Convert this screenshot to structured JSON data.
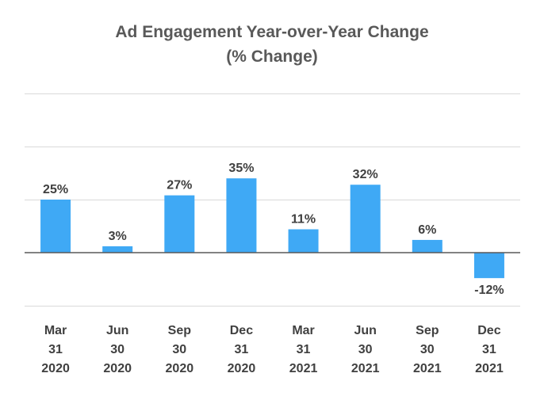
{
  "chart_data": {
    "type": "bar",
    "title": "Ad Engagement Year-over-Year Change",
    "subtitle": "(% Change)",
    "categories": [
      [
        "Mar",
        "31",
        "2020"
      ],
      [
        "Jun",
        "30",
        "2020"
      ],
      [
        "Sep",
        "30",
        "2020"
      ],
      [
        "Dec",
        "31",
        "2020"
      ],
      [
        "Mar",
        "31",
        "2021"
      ],
      [
        "Jun",
        "30",
        "2021"
      ],
      [
        "Sep",
        "30",
        "2021"
      ],
      [
        "Dec",
        "31",
        "2021"
      ]
    ],
    "values": [
      25,
      3,
      27,
      35,
      11,
      32,
      6,
      -12
    ],
    "data_labels": [
      "25%",
      "3%",
      "27%",
      "35%",
      "11%",
      "32%",
      "6%",
      "-12%"
    ],
    "xlabel": "",
    "ylabel": "",
    "ylim": [
      -25,
      75
    ],
    "gridlines": [
      -25,
      25,
      50,
      75
    ],
    "grid": true,
    "legend": "none",
    "bar_color": "#3fa9f5"
  }
}
